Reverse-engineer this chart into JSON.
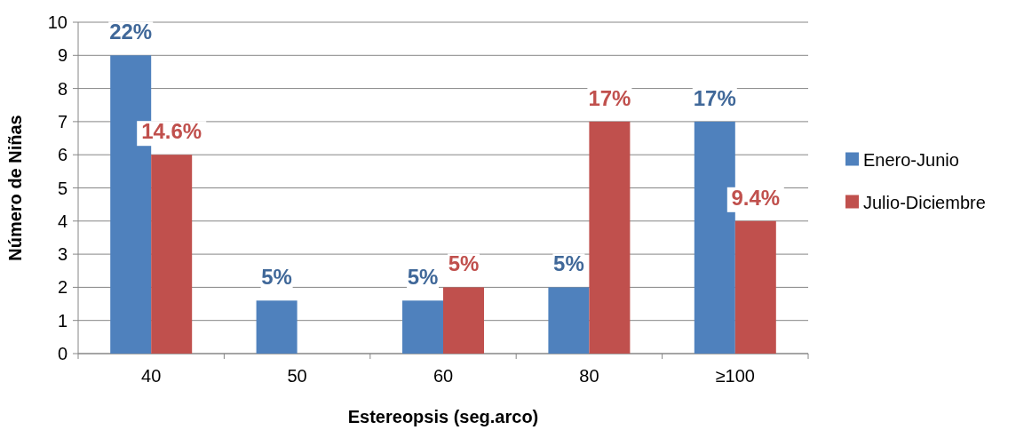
{
  "chart_data": {
    "type": "bar",
    "xlabel": "Estereopsis (seg.arco)",
    "ylabel": "Número de Niñas",
    "categories": [
      "40",
      "50",
      "60",
      "80",
      "≥100"
    ],
    "series": [
      {
        "name": "Enero-Junio",
        "color": "#4f81bd",
        "values": [
          9,
          1.6,
          1.6,
          2,
          7
        ]
      },
      {
        "name": "Julio-Diciembre",
        "color": "#c0504d",
        "values": [
          6,
          null,
          2,
          7,
          4
        ]
      }
    ],
    "annotations": [
      {
        "text": "22%",
        "x": "40",
        "y": 9
      },
      {
        "text": "14.6%",
        "x": "40",
        "y": 6
      },
      {
        "text": "5%",
        "x": "50",
        "y": 1.6
      },
      {
        "text": "5%",
        "x": "60",
        "y": 1.6
      },
      {
        "text": "5%",
        "x": "60",
        "y": 2
      },
      {
        "text": "5%",
        "x": "80",
        "y": 2
      },
      {
        "text": "17%",
        "x": "80",
        "y": 7
      },
      {
        "text": "17%",
        "x": "≥100",
        "y": 7
      },
      {
        "text": "9.4%",
        "x": "≥100",
        "y": 4
      }
    ],
    "ylim": [
      0,
      10
    ],
    "yticks": [
      0,
      1,
      2,
      3,
      4,
      5,
      6,
      7,
      8,
      9,
      10
    ],
    "grid": "y",
    "legend": "right"
  }
}
